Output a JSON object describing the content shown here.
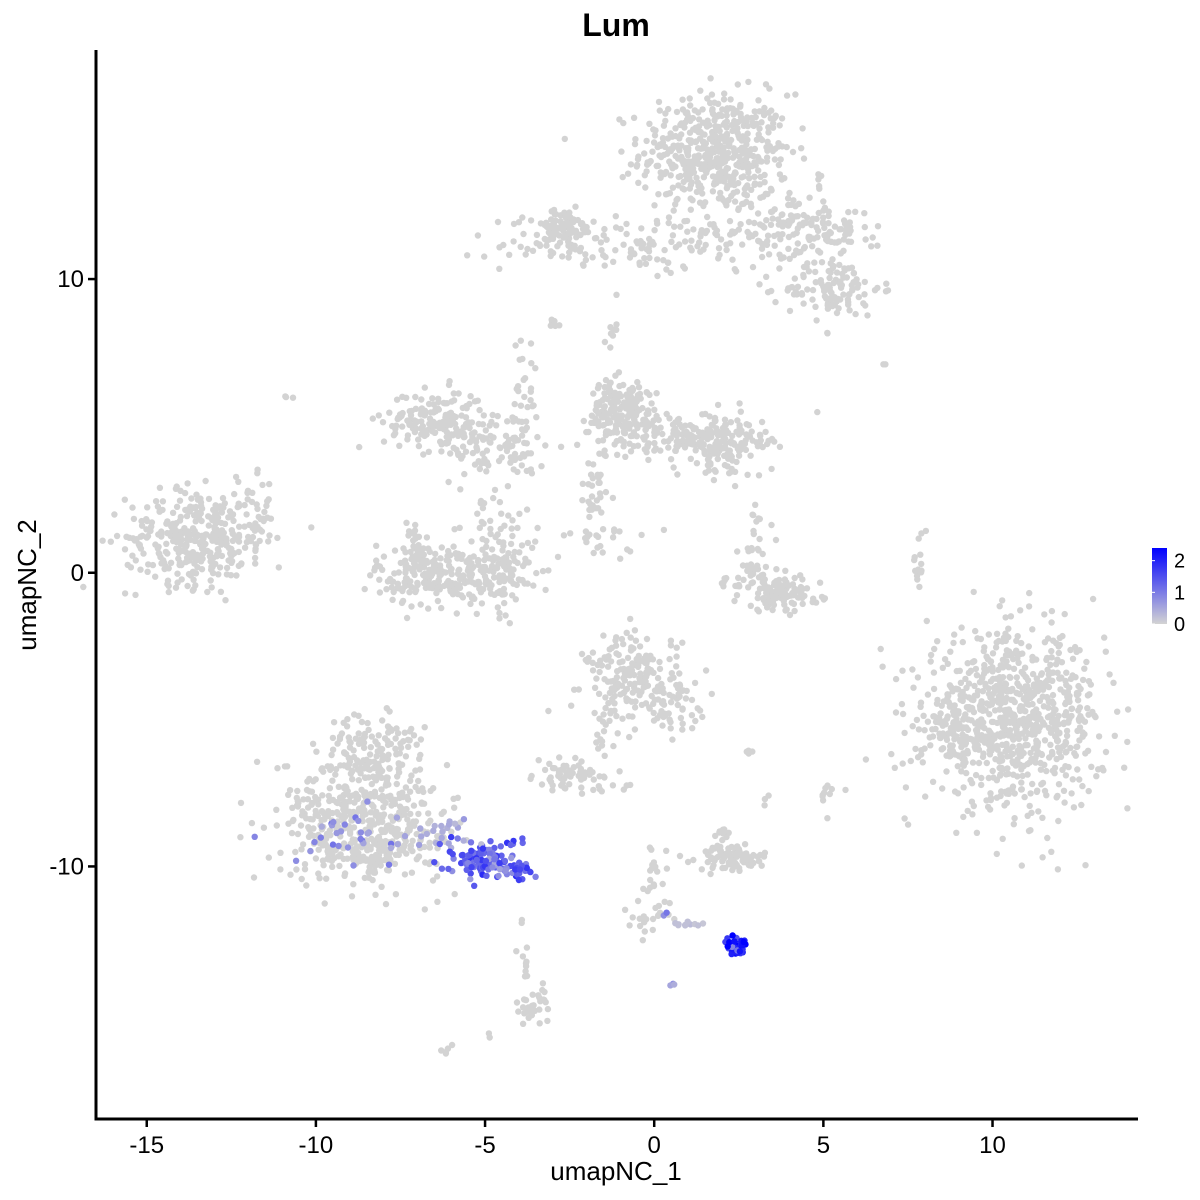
{
  "chart_data": {
    "type": "scatter",
    "title": "Lum",
    "xlabel": "umapNC_1",
    "ylabel": "umapNC_2",
    "xlim": [
      -16.5,
      14.3
    ],
    "ylim": [
      -18.6,
      17.8
    ],
    "xticks": [
      -15,
      -10,
      -5,
      0,
      5,
      10
    ],
    "xtick_labels": [
      "-15",
      "-10",
      "-5",
      "0",
      "5",
      "10"
    ],
    "yticks": [
      -10,
      0,
      10
    ],
    "ytick_labels": [
      "-10",
      "0",
      "10"
    ],
    "grid": false,
    "legend": {
      "placement": "right",
      "type": "colorbar",
      "labels": [
        "2",
        "1",
        "0"
      ],
      "values": [
        2,
        1,
        0
      ],
      "range": [
        0,
        2.4
      ],
      "low_color": "#d3d3d3",
      "high_color": "#0000ff"
    },
    "colors": {
      "low": "#d3d3d3",
      "high": "#0000ff"
    },
    "clusters": [
      {
        "cx": 1.8,
        "cy": 14.3,
        "sx": 1.1,
        "sy": 1.0,
        "n": 520,
        "expr": 0
      },
      {
        "cx": 0.0,
        "cy": 11.2,
        "sx": 2.2,
        "sy": 0.45,
        "n": 160,
        "expr": 0
      },
      {
        "cx": -2.7,
        "cy": 11.7,
        "sx": 0.5,
        "sy": 0.35,
        "n": 90,
        "expr": 0
      },
      {
        "cx": 4.0,
        "cy": 11.8,
        "sx": 1.0,
        "sy": 0.7,
        "n": 110,
        "expr": 0
      },
      {
        "cx": 5.3,
        "cy": 9.7,
        "sx": 0.7,
        "sy": 0.5,
        "n": 110,
        "expr": 0
      },
      {
        "cx": 5.4,
        "cy": 11.6,
        "sx": 0.3,
        "sy": 0.4,
        "n": 30,
        "expr": 0
      },
      {
        "cx": -3.0,
        "cy": 8.5,
        "sx": 0.15,
        "sy": 0.15,
        "n": 6,
        "expr": 0
      },
      {
        "cx": 6.8,
        "cy": 7.1,
        "sx": 0.05,
        "sy": 0.05,
        "n": 2,
        "expr": 0
      },
      {
        "cx": 5.1,
        "cy": 8.1,
        "sx": 0.05,
        "sy": 0.05,
        "n": 2,
        "expr": 0
      },
      {
        "cx": -13.5,
        "cy": 1.2,
        "sx": 1.05,
        "sy": 0.8,
        "n": 340,
        "expr": 0
      },
      {
        "cx": -11.8,
        "cy": 2.0,
        "sx": 0.4,
        "sy": 0.6,
        "n": 30,
        "expr": 0
      },
      {
        "cx": -10.8,
        "cy": 6.0,
        "sx": 0.08,
        "sy": 0.08,
        "n": 3,
        "expr": 0
      },
      {
        "cx": -6.5,
        "cy": 5.2,
        "sx": 0.75,
        "sy": 0.5,
        "n": 160,
        "expr": 0
      },
      {
        "cx": -4.8,
        "cy": 4.3,
        "sx": 0.8,
        "sy": 0.55,
        "n": 90,
        "expr": 0
      },
      {
        "cx": -3.9,
        "cy": 5.8,
        "sx": 0.2,
        "sy": 1.2,
        "n": 35,
        "expr": 0
      },
      {
        "cx": -5.0,
        "cy": 1.8,
        "sx": 0.25,
        "sy": 1.1,
        "n": 25,
        "expr": 0
      },
      {
        "cx": -6.0,
        "cy": -0.1,
        "sx": 1.1,
        "sy": 0.55,
        "n": 260,
        "expr": 0
      },
      {
        "cx": -4.3,
        "cy": 0.6,
        "sx": 0.35,
        "sy": 0.8,
        "n": 60,
        "expr": 0
      },
      {
        "cx": -7.0,
        "cy": 0.6,
        "sx": 0.25,
        "sy": 0.6,
        "n": 40,
        "expr": 0
      },
      {
        "cx": -1.2,
        "cy": 8.2,
        "sx": 0.15,
        "sy": 0.2,
        "n": 8,
        "expr": 0
      },
      {
        "cx": -1.5,
        "cy": 5.5,
        "sx": 0.3,
        "sy": 0.6,
        "n": 25,
        "expr": 0
      },
      {
        "cx": -0.8,
        "cy": 5.4,
        "sx": 0.55,
        "sy": 0.6,
        "n": 170,
        "expr": 0
      },
      {
        "cx": 1.2,
        "cy": 4.6,
        "sx": 1.0,
        "sy": 0.4,
        "n": 140,
        "expr": 0
      },
      {
        "cx": 2.2,
        "cy": 4.2,
        "sx": 0.5,
        "sy": 0.5,
        "n": 90,
        "expr": 0
      },
      {
        "cx": -1.7,
        "cy": 2.8,
        "sx": 0.3,
        "sy": 0.8,
        "n": 35,
        "expr": 0
      },
      {
        "cx": -1.5,
        "cy": 1.2,
        "sx": 0.8,
        "sy": 0.35,
        "n": 20,
        "expr": 0
      },
      {
        "cx": -2.0,
        "cy": 1.2,
        "sx": 0.05,
        "sy": 0.05,
        "n": 2,
        "expr": 0
      },
      {
        "cx": 3.7,
        "cy": -0.7,
        "sx": 0.6,
        "sy": 0.3,
        "n": 120,
        "expr": 0
      },
      {
        "cx": 3.0,
        "cy": 0.7,
        "sx": 0.25,
        "sy": 0.8,
        "n": 35,
        "expr": 0
      },
      {
        "cx": 2.4,
        "cy": -0.3,
        "sx": 0.3,
        "sy": 0.15,
        "n": 10,
        "expr": 0
      },
      {
        "cx": 7.8,
        "cy": 0.3,
        "sx": 0.12,
        "sy": 0.5,
        "n": 15,
        "expr": 0
      },
      {
        "cx": 10.6,
        "cy": -5.0,
        "sx": 1.3,
        "sy": 1.45,
        "n": 820,
        "expr": 0
      },
      {
        "cx": 8.8,
        "cy": -5.5,
        "sx": 0.4,
        "sy": 0.7,
        "n": 60,
        "expr": 0
      },
      {
        "cx": -0.6,
        "cy": -3.6,
        "sx": 0.7,
        "sy": 0.75,
        "n": 200,
        "expr": 0
      },
      {
        "cx": 0.8,
        "cy": -4.8,
        "sx": 0.45,
        "sy": 0.5,
        "n": 35,
        "expr": 0
      },
      {
        "cx": -1.4,
        "cy": -5.3,
        "sx": 0.2,
        "sy": 0.4,
        "n": 8,
        "expr": 0
      },
      {
        "cx": 2.8,
        "cy": -6.1,
        "sx": 0.1,
        "sy": 0.05,
        "n": 4,
        "expr": 0
      },
      {
        "cx": -2.5,
        "cy": -6.9,
        "sx": 0.5,
        "sy": 0.25,
        "n": 60,
        "expr": 0
      },
      {
        "cx": -1.6,
        "cy": -6.0,
        "sx": 0.1,
        "sy": 0.3,
        "n": 5,
        "expr": 0
      },
      {
        "cx": -0.9,
        "cy": -7.4,
        "sx": 0.1,
        "sy": 0.1,
        "n": 3,
        "expr": 0
      },
      {
        "cx": -1.7,
        "cy": -7.5,
        "sx": 0.1,
        "sy": 0.1,
        "n": 3,
        "expr": 0
      },
      {
        "cx": 3.3,
        "cy": -7.8,
        "sx": 0.1,
        "sy": 0.1,
        "n": 3,
        "expr": 0
      },
      {
        "cx": 5.0,
        "cy": -7.5,
        "sx": 0.2,
        "sy": 0.3,
        "n": 10,
        "expr": 0
      },
      {
        "cx": 2.3,
        "cy": -9.7,
        "sx": 0.5,
        "sy": 0.22,
        "n": 90,
        "expr": 0
      },
      {
        "cx": 2.0,
        "cy": -8.8,
        "sx": 0.15,
        "sy": 0.1,
        "n": 10,
        "expr": 0
      },
      {
        "cx": -8.7,
        "cy": -8.2,
        "sx": 1.2,
        "sy": 1.1,
        "n": 420,
        "expr": 0
      },
      {
        "cx": -8.5,
        "cy": -6.0,
        "sx": 0.6,
        "sy": 0.6,
        "n": 90,
        "expr": 0
      },
      {
        "cx": -8.3,
        "cy": -9.6,
        "sx": 0.8,
        "sy": 0.35,
        "n": 90,
        "expr": 0
      },
      {
        "cx": -7.3,
        "cy": -5.8,
        "sx": 0.3,
        "sy": 0.4,
        "n": 15,
        "expr": 0
      },
      {
        "cx": -6.6,
        "cy": -8.8,
        "sx": 0.5,
        "sy": 0.4,
        "n": 30,
        "expr": 0
      },
      {
        "cx": -9.0,
        "cy": -9.0,
        "sx": 0.9,
        "sy": 0.6,
        "n": 30,
        "expr": 0.7
      },
      {
        "cx": -6.2,
        "cy": -8.9,
        "sx": 0.4,
        "sy": 0.3,
        "n": 20,
        "expr": 0.4
      },
      {
        "cx": -5.0,
        "cy": -9.7,
        "sx": 0.55,
        "sy": 0.3,
        "n": 110,
        "expr": 1.3
      },
      {
        "cx": -4.2,
        "cy": -10.2,
        "sx": 0.35,
        "sy": 0.2,
        "n": 35,
        "expr": 1.4
      },
      {
        "cx": 0.0,
        "cy": -10.4,
        "sx": 0.25,
        "sy": 0.7,
        "n": 22,
        "expr": 0
      },
      {
        "cx": -0.2,
        "cy": -11.8,
        "sx": 0.35,
        "sy": 0.25,
        "n": 18,
        "expr": 0
      },
      {
        "cx": 1.2,
        "cy": -12.0,
        "sx": 0.6,
        "sy": 0.08,
        "n": 10,
        "expr": 0.2
      },
      {
        "cx": 0.3,
        "cy": -11.6,
        "sx": 0.05,
        "sy": 0.05,
        "n": 2,
        "expr": 0.8
      },
      {
        "cx": 2.4,
        "cy": -12.7,
        "sx": 0.12,
        "sy": 0.15,
        "n": 55,
        "expr": 2.3
      },
      {
        "cx": 0.5,
        "cy": -14.0,
        "sx": 0.05,
        "sy": 0.05,
        "n": 3,
        "expr": 0.6
      },
      {
        "cx": -3.6,
        "cy": -14.8,
        "sx": 0.25,
        "sy": 0.3,
        "n": 30,
        "expr": 0
      },
      {
        "cx": -3.8,
        "cy": -13.4,
        "sx": 0.08,
        "sy": 0.5,
        "n": 8,
        "expr": 0
      },
      {
        "cx": -3.9,
        "cy": -12.0,
        "sx": 0.05,
        "sy": 0.4,
        "n": 3,
        "expr": 0
      },
      {
        "cx": -6.0,
        "cy": -16.3,
        "sx": 0.12,
        "sy": 0.08,
        "n": 5,
        "expr": 0
      },
      {
        "cx": -4.9,
        "cy": -15.8,
        "sx": 0.05,
        "sy": 0.05,
        "n": 2,
        "expr": 0
      }
    ]
  }
}
